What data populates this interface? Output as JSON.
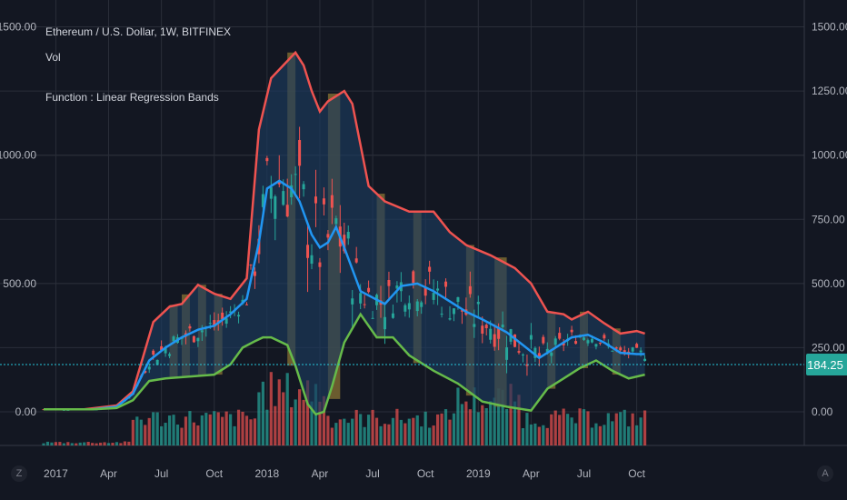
{
  "legend": {
    "title": "Ethereum / U.S. Dollar, 1W, BITFINEX",
    "vol": "Vol",
    "func": "Function : Linear Regression Bands"
  },
  "corner_left": "Z",
  "corner_right": "A",
  "colors": {
    "background": "#131722",
    "grid": "#2a2e39",
    "upper_band": "#ef5350",
    "mid_line": "#2196f3",
    "lower_band": "#66bb4a",
    "fill": "#1c3a5e",
    "highlight": "#8a7434",
    "candle_up": "#26a69a",
    "candle_down": "#ef5350",
    "price_line": "#26c6da",
    "axis_text": "#b2b5be"
  },
  "chart_data": {
    "type": "line",
    "left_axis": {
      "ticks": [
        "1500.00",
        "1000.00",
        "500.00",
        "0.00"
      ],
      "tick_values": [
        1500,
        1000,
        500,
        0
      ]
    },
    "right_axis": {
      "ticks": [
        "1500.00",
        "1250.00",
        "1000.00",
        "750.00",
        "500.00",
        "250.00",
        "0.00"
      ],
      "tick_values": [
        1500,
        1250,
        1000,
        750,
        500,
        250,
        0
      ]
    },
    "x_ticks": [
      "2017",
      "Apr",
      "Jul",
      "Oct",
      "2018",
      "Apr",
      "Jul",
      "Oct",
      "2019",
      "Apr",
      "Jul",
      "Oct"
    ],
    "x_tick_weeks": [
      3,
      16,
      29,
      42,
      55,
      68,
      81,
      94,
      107,
      120,
      133,
      146
    ],
    "last_price": "184.25",
    "last_price_value": 184.25,
    "upper_band": [
      [
        0,
        10
      ],
      [
        10,
        10
      ],
      [
        18,
        25
      ],
      [
        22,
        80
      ],
      [
        27,
        350
      ],
      [
        31,
        410
      ],
      [
        34,
        420
      ],
      [
        38,
        495
      ],
      [
        42,
        460
      ],
      [
        46,
        440
      ],
      [
        50,
        520
      ],
      [
        53,
        1100
      ],
      [
        56,
        1300
      ],
      [
        59,
        1350
      ],
      [
        62,
        1400
      ],
      [
        64,
        1350
      ],
      [
        66,
        1250
      ],
      [
        68,
        1170
      ],
      [
        70,
        1210
      ],
      [
        74,
        1250
      ],
      [
        76,
        1200
      ],
      [
        80,
        880
      ],
      [
        84,
        820
      ],
      [
        90,
        780
      ],
      [
        96,
        780
      ],
      [
        100,
        700
      ],
      [
        104,
        650
      ],
      [
        110,
        610
      ],
      [
        116,
        560
      ],
      [
        120,
        500
      ],
      [
        124,
        390
      ],
      [
        128,
        380
      ],
      [
        130,
        360
      ],
      [
        134,
        390
      ],
      [
        138,
        345
      ],
      [
        142,
        305
      ],
      [
        146,
        315
      ],
      [
        148,
        305
      ]
    ],
    "mid_line": [
      [
        0,
        10
      ],
      [
        12,
        10
      ],
      [
        18,
        20
      ],
      [
        22,
        70
      ],
      [
        26,
        200
      ],
      [
        30,
        250
      ],
      [
        34,
        290
      ],
      [
        38,
        320
      ],
      [
        42,
        335
      ],
      [
        46,
        380
      ],
      [
        50,
        440
      ],
      [
        53,
        660
      ],
      [
        55,
        870
      ],
      [
        58,
        900
      ],
      [
        61,
        870
      ],
      [
        63,
        820
      ],
      [
        66,
        690
      ],
      [
        68,
        640
      ],
      [
        70,
        660
      ],
      [
        72,
        720
      ],
      [
        74,
        640
      ],
      [
        78,
        470
      ],
      [
        84,
        420
      ],
      [
        88,
        490
      ],
      [
        92,
        500
      ],
      [
        96,
        470
      ],
      [
        100,
        430
      ],
      [
        104,
        390
      ],
      [
        108,
        360
      ],
      [
        114,
        310
      ],
      [
        118,
        260
      ],
      [
        122,
        210
      ],
      [
        126,
        250
      ],
      [
        130,
        290
      ],
      [
        134,
        300
      ],
      [
        138,
        270
      ],
      [
        142,
        230
      ],
      [
        146,
        225
      ],
      [
        148,
        225
      ]
    ],
    "lower_band": [
      [
        0,
        10
      ],
      [
        12,
        10
      ],
      [
        18,
        15
      ],
      [
        22,
        45
      ],
      [
        26,
        120
      ],
      [
        30,
        130
      ],
      [
        34,
        135
      ],
      [
        38,
        140
      ],
      [
        42,
        145
      ],
      [
        46,
        185
      ],
      [
        49,
        250
      ],
      [
        52,
        275
      ],
      [
        54,
        290
      ],
      [
        56,
        290
      ],
      [
        60,
        260
      ],
      [
        62,
        180
      ],
      [
        65,
        30
      ],
      [
        67,
        -10
      ],
      [
        69,
        0
      ],
      [
        71,
        100
      ],
      [
        74,
        270
      ],
      [
        78,
        380
      ],
      [
        82,
        290
      ],
      [
        86,
        290
      ],
      [
        90,
        220
      ],
      [
        96,
        160
      ],
      [
        102,
        110
      ],
      [
        108,
        40
      ],
      [
        114,
        20
      ],
      [
        120,
        5
      ],
      [
        124,
        90
      ],
      [
        128,
        130
      ],
      [
        132,
        170
      ],
      [
        136,
        200
      ],
      [
        140,
        160
      ],
      [
        144,
        130
      ],
      [
        148,
        145
      ]
    ],
    "highlight_weeks": [
      [
        31,
        33
      ],
      [
        34,
        36
      ],
      [
        38,
        40
      ],
      [
        42,
        44
      ],
      [
        60,
        62
      ],
      [
        70,
        73
      ],
      [
        82,
        84
      ],
      [
        91,
        93
      ],
      [
        104,
        106
      ],
      [
        111,
        114
      ],
      [
        124,
        126
      ],
      [
        132,
        134
      ],
      [
        140,
        142
      ]
    ]
  }
}
